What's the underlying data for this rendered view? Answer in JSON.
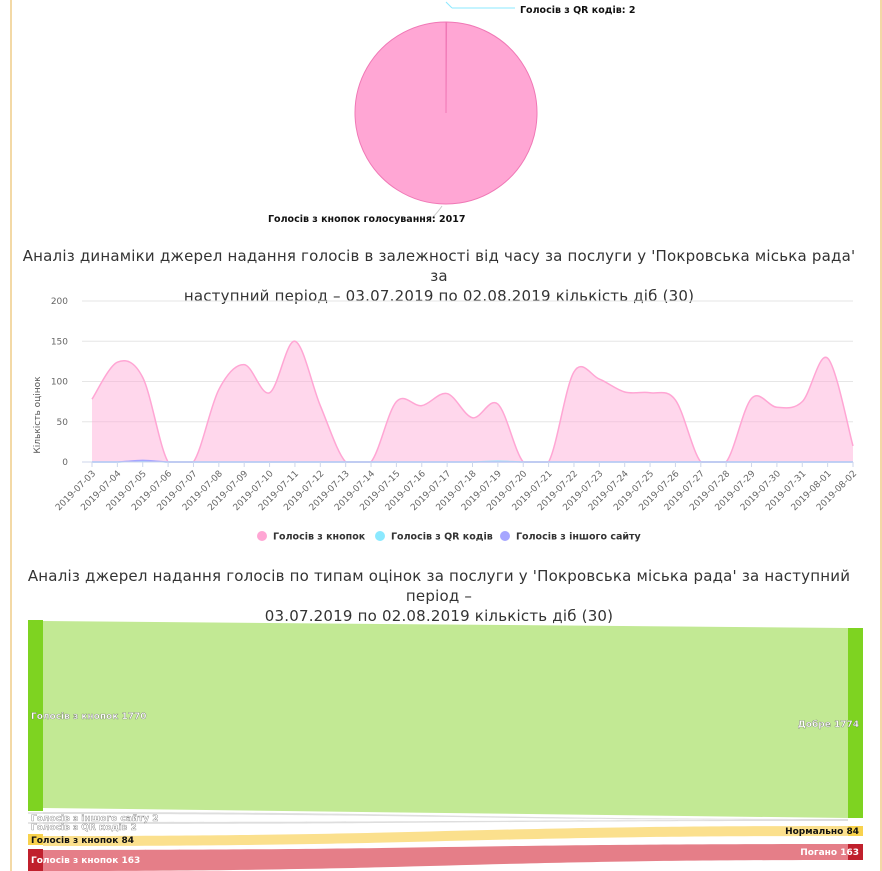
{
  "pie_chart": {
    "labels": {
      "qr": "Голосів з QR кодів: 2",
      "buttons": "Голосів з кнопок голосування: 2017"
    }
  },
  "area_chart": {
    "title_line1": "Аналіз динаміки джерел надання голосів в залежності від часу за послуги у 'Покровська міська рада' за",
    "title_line2": "наступний період – 03.07.2019 по 02.08.2019 кількість діб (30)",
    "ylabel": "Кількість оцінок",
    "legend": [
      "Голосів з кнопок",
      "Голосів з QR кодів",
      "Голосів з іншого сайту"
    ]
  },
  "sankey": {
    "title_line1": "Аналіз джерел надання голосів по типам оцінок за послуги у 'Покровська міська рада' за наступний період –",
    "title_line2": "03.07.2019 по 02.08.2019 кількість діб (30)",
    "labels": {
      "src_buttons_good": "Голосів з кнопок 1770",
      "src_other": "Голосів з іншого сайту 2",
      "src_qr": "Голосів з QR кодів 2",
      "src_buttons_normal": "Голосів з кнопок 84",
      "src_buttons_bad": "Голосів з кнопок 163",
      "dst_good": "Добре 1774",
      "dst_normal": "Нормально 84",
      "dst_bad": "Погано 163"
    }
  },
  "colors": {
    "buttons": "#ffa6d4",
    "qr": "#8be9ff",
    "other": "#a6a6ff",
    "good": "#7ed321",
    "normal": "#f8d24d",
    "bad": "#c0202c"
  },
  "chart_data": [
    {
      "type": "pie",
      "slices": [
        {
          "label": "Голосів з кнопок голосування",
          "value": 2017
        },
        {
          "label": "Голосів з QR кодів",
          "value": 2
        }
      ]
    },
    {
      "type": "area",
      "title": "Аналіз динаміки джерел надання голосів в залежності від часу за послуги у 'Покровська міська рада' за наступний період – 03.07.2019 по 02.08.2019 кількість діб (30)",
      "ylabel": "Кількість оцінок",
      "ylim": [
        0,
        200
      ],
      "yticks": [
        0,
        50,
        100,
        150,
        200
      ],
      "x": [
        "2019-07-03",
        "2019-07-04",
        "2019-07-05",
        "2019-07-06",
        "2019-07-07",
        "2019-07-08",
        "2019-07-09",
        "2019-07-10",
        "2019-07-11",
        "2019-07-12",
        "2019-07-13",
        "2019-07-14",
        "2019-07-15",
        "2019-07-16",
        "2019-07-17",
        "2019-07-18",
        "2019-07-19",
        "2019-07-20",
        "2019-07-21",
        "2019-07-22",
        "2019-07-23",
        "2019-07-24",
        "2019-07-25",
        "2019-07-26",
        "2019-07-27",
        "2019-07-28",
        "2019-07-29",
        "2019-07-30",
        "2019-07-31",
        "2019-08-01",
        "2019-08-02"
      ],
      "series": [
        {
          "name": "Голосів з кнопок",
          "values": [
            78,
            124,
            105,
            0,
            0,
            90,
            121,
            86,
            150,
            70,
            0,
            0,
            75,
            70,
            85,
            55,
            72,
            0,
            0,
            112,
            103,
            87,
            86,
            77,
            0,
            0,
            79,
            68,
            75,
            129,
            20
          ]
        },
        {
          "name": "Голосів з QR кодів",
          "values": [
            0,
            0,
            1,
            0,
            0,
            0,
            0,
            0,
            0,
            0,
            0,
            0,
            0,
            0,
            0,
            0,
            1,
            0,
            0,
            0,
            0,
            0,
            0,
            0,
            0,
            0,
            0,
            0,
            0,
            0,
            0
          ]
        },
        {
          "name": "Голосів з іншого сайту",
          "values": [
            0,
            0,
            2,
            0,
            0,
            0,
            0,
            0,
            0,
            0,
            0,
            0,
            0,
            0,
            0,
            0,
            0,
            0,
            0,
            0,
            0,
            0,
            0,
            0,
            0,
            0,
            0,
            0,
            0,
            0,
            0
          ]
        }
      ],
      "legend": "bottom"
    },
    {
      "type": "sankey",
      "title": "Аналіз джерел надання голосів по типам оцінок за послуги у 'Покровська міська рада' за наступний період – 03.07.2019 по 02.08.2019 кількість діб (30)",
      "flows": [
        {
          "from": "Голосів з кнопок",
          "to": "Добре",
          "value": 1770
        },
        {
          "from": "Голосів з іншого сайту",
          "to": "Добре",
          "value": 2
        },
        {
          "from": "Голосів з QR кодів",
          "to": "Добре",
          "value": 2
        },
        {
          "from": "Голосів з кнопок",
          "to": "Нормально",
          "value": 84
        },
        {
          "from": "Голосів з кнопок",
          "to": "Погано",
          "value": 163
        }
      ]
    }
  ]
}
